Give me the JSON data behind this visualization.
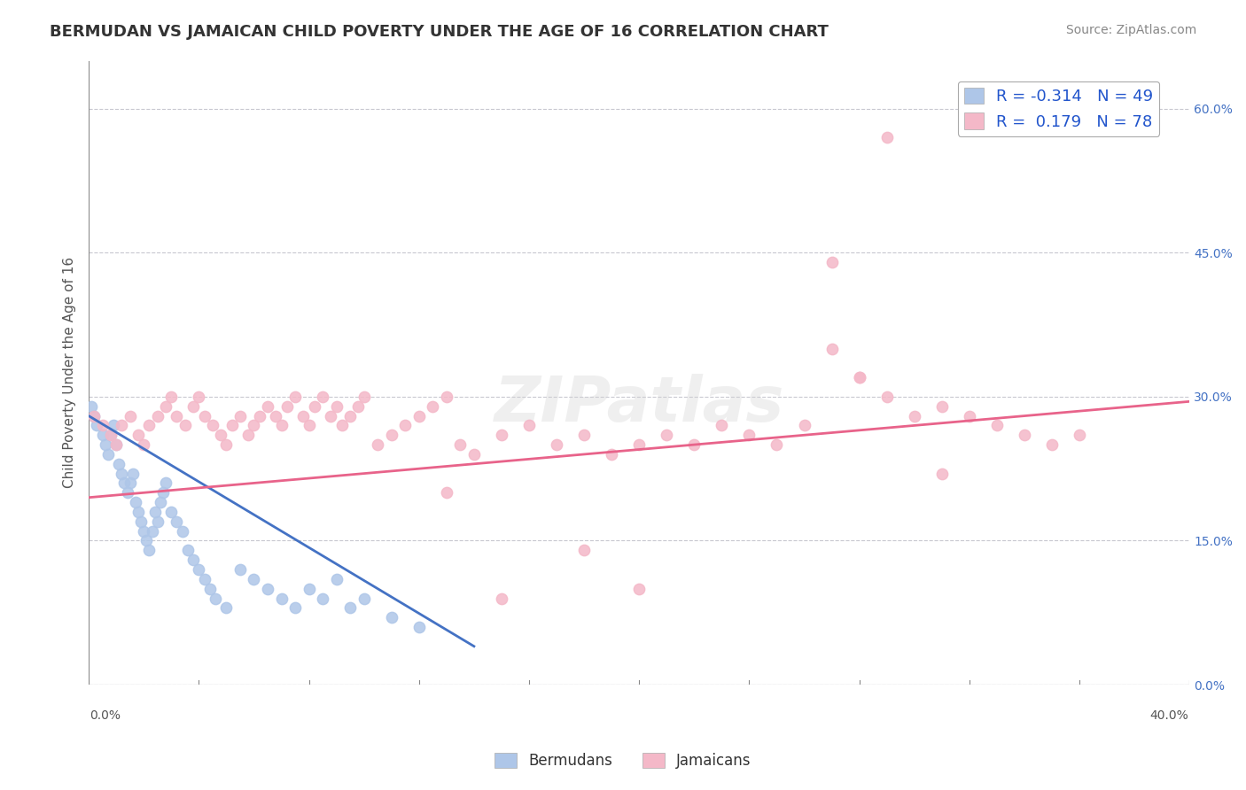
{
  "title": "BERMUDAN VS JAMAICAN CHILD POVERTY UNDER THE AGE OF 16 CORRELATION CHART",
  "source": "Source: ZipAtlas.com",
  "yaxis_label": "Child Poverty Under the Age of 16",
  "legend_entries": [
    {
      "label": "Bermudans",
      "color": "#aec6e8",
      "R": "-0.314",
      "N": "49"
    },
    {
      "label": "Jamaicans",
      "color": "#f4b8c8",
      "R": "0.179",
      "N": "78"
    }
  ],
  "bermudans": {
    "x": [
      0.001,
      0.002,
      0.003,
      0.005,
      0.006,
      0.007,
      0.008,
      0.009,
      0.01,
      0.011,
      0.012,
      0.013,
      0.014,
      0.015,
      0.016,
      0.017,
      0.018,
      0.019,
      0.02,
      0.021,
      0.022,
      0.023,
      0.024,
      0.025,
      0.026,
      0.027,
      0.028,
      0.03,
      0.032,
      0.034,
      0.036,
      0.038,
      0.04,
      0.042,
      0.044,
      0.046,
      0.05,
      0.055,
      0.06,
      0.065,
      0.07,
      0.075,
      0.08,
      0.085,
      0.09,
      0.095,
      0.1,
      0.11,
      0.12
    ],
    "y": [
      0.29,
      0.28,
      0.27,
      0.26,
      0.25,
      0.24,
      0.26,
      0.27,
      0.25,
      0.23,
      0.22,
      0.21,
      0.2,
      0.21,
      0.22,
      0.19,
      0.18,
      0.17,
      0.16,
      0.15,
      0.14,
      0.16,
      0.18,
      0.17,
      0.19,
      0.2,
      0.21,
      0.18,
      0.17,
      0.16,
      0.14,
      0.13,
      0.12,
      0.11,
      0.1,
      0.09,
      0.08,
      0.12,
      0.11,
      0.1,
      0.09,
      0.08,
      0.1,
      0.09,
      0.11,
      0.08,
      0.09,
      0.07,
      0.06
    ],
    "scatter_color": "#aec6e8",
    "line_color": "#4472c4",
    "trend_x": [
      0.0,
      0.14
    ],
    "trend_y": [
      0.28,
      0.04
    ]
  },
  "jamaicans": {
    "x": [
      0.002,
      0.005,
      0.008,
      0.01,
      0.012,
      0.015,
      0.018,
      0.02,
      0.022,
      0.025,
      0.028,
      0.03,
      0.032,
      0.035,
      0.038,
      0.04,
      0.042,
      0.045,
      0.048,
      0.05,
      0.052,
      0.055,
      0.058,
      0.06,
      0.062,
      0.065,
      0.068,
      0.07,
      0.072,
      0.075,
      0.078,
      0.08,
      0.082,
      0.085,
      0.088,
      0.09,
      0.092,
      0.095,
      0.098,
      0.1,
      0.105,
      0.11,
      0.115,
      0.12,
      0.125,
      0.13,
      0.135,
      0.14,
      0.15,
      0.16,
      0.17,
      0.18,
      0.19,
      0.2,
      0.21,
      0.22,
      0.23,
      0.24,
      0.25,
      0.26,
      0.27,
      0.28,
      0.29,
      0.3,
      0.31,
      0.32,
      0.33,
      0.34,
      0.35,
      0.36,
      0.27,
      0.28,
      0.31,
      0.15,
      0.18,
      0.29,
      0.2,
      0.13
    ],
    "y": [
      0.28,
      0.27,
      0.26,
      0.25,
      0.27,
      0.28,
      0.26,
      0.25,
      0.27,
      0.28,
      0.29,
      0.3,
      0.28,
      0.27,
      0.29,
      0.3,
      0.28,
      0.27,
      0.26,
      0.25,
      0.27,
      0.28,
      0.26,
      0.27,
      0.28,
      0.29,
      0.28,
      0.27,
      0.29,
      0.3,
      0.28,
      0.27,
      0.29,
      0.3,
      0.28,
      0.29,
      0.27,
      0.28,
      0.29,
      0.3,
      0.25,
      0.26,
      0.27,
      0.28,
      0.29,
      0.3,
      0.25,
      0.24,
      0.26,
      0.27,
      0.25,
      0.26,
      0.24,
      0.25,
      0.26,
      0.25,
      0.27,
      0.26,
      0.25,
      0.27,
      0.35,
      0.32,
      0.3,
      0.28,
      0.29,
      0.28,
      0.27,
      0.26,
      0.25,
      0.26,
      0.44,
      0.32,
      0.22,
      0.09,
      0.14,
      0.57,
      0.1,
      0.2
    ],
    "scatter_color": "#f4b8c8",
    "line_color": "#e8638a",
    "trend_x": [
      0.0,
      0.4
    ],
    "trend_y": [
      0.195,
      0.295
    ]
  },
  "xlim": [
    0.0,
    0.4
  ],
  "ylim": [
    0.0,
    0.65
  ],
  "watermark": "ZIPatlas",
  "background_color": "#ffffff",
  "grid_color": "#c8c8d0",
  "title_color": "#333333",
  "source_color": "#888888",
  "yticks": [
    0.0,
    0.15,
    0.3,
    0.45,
    0.6
  ]
}
